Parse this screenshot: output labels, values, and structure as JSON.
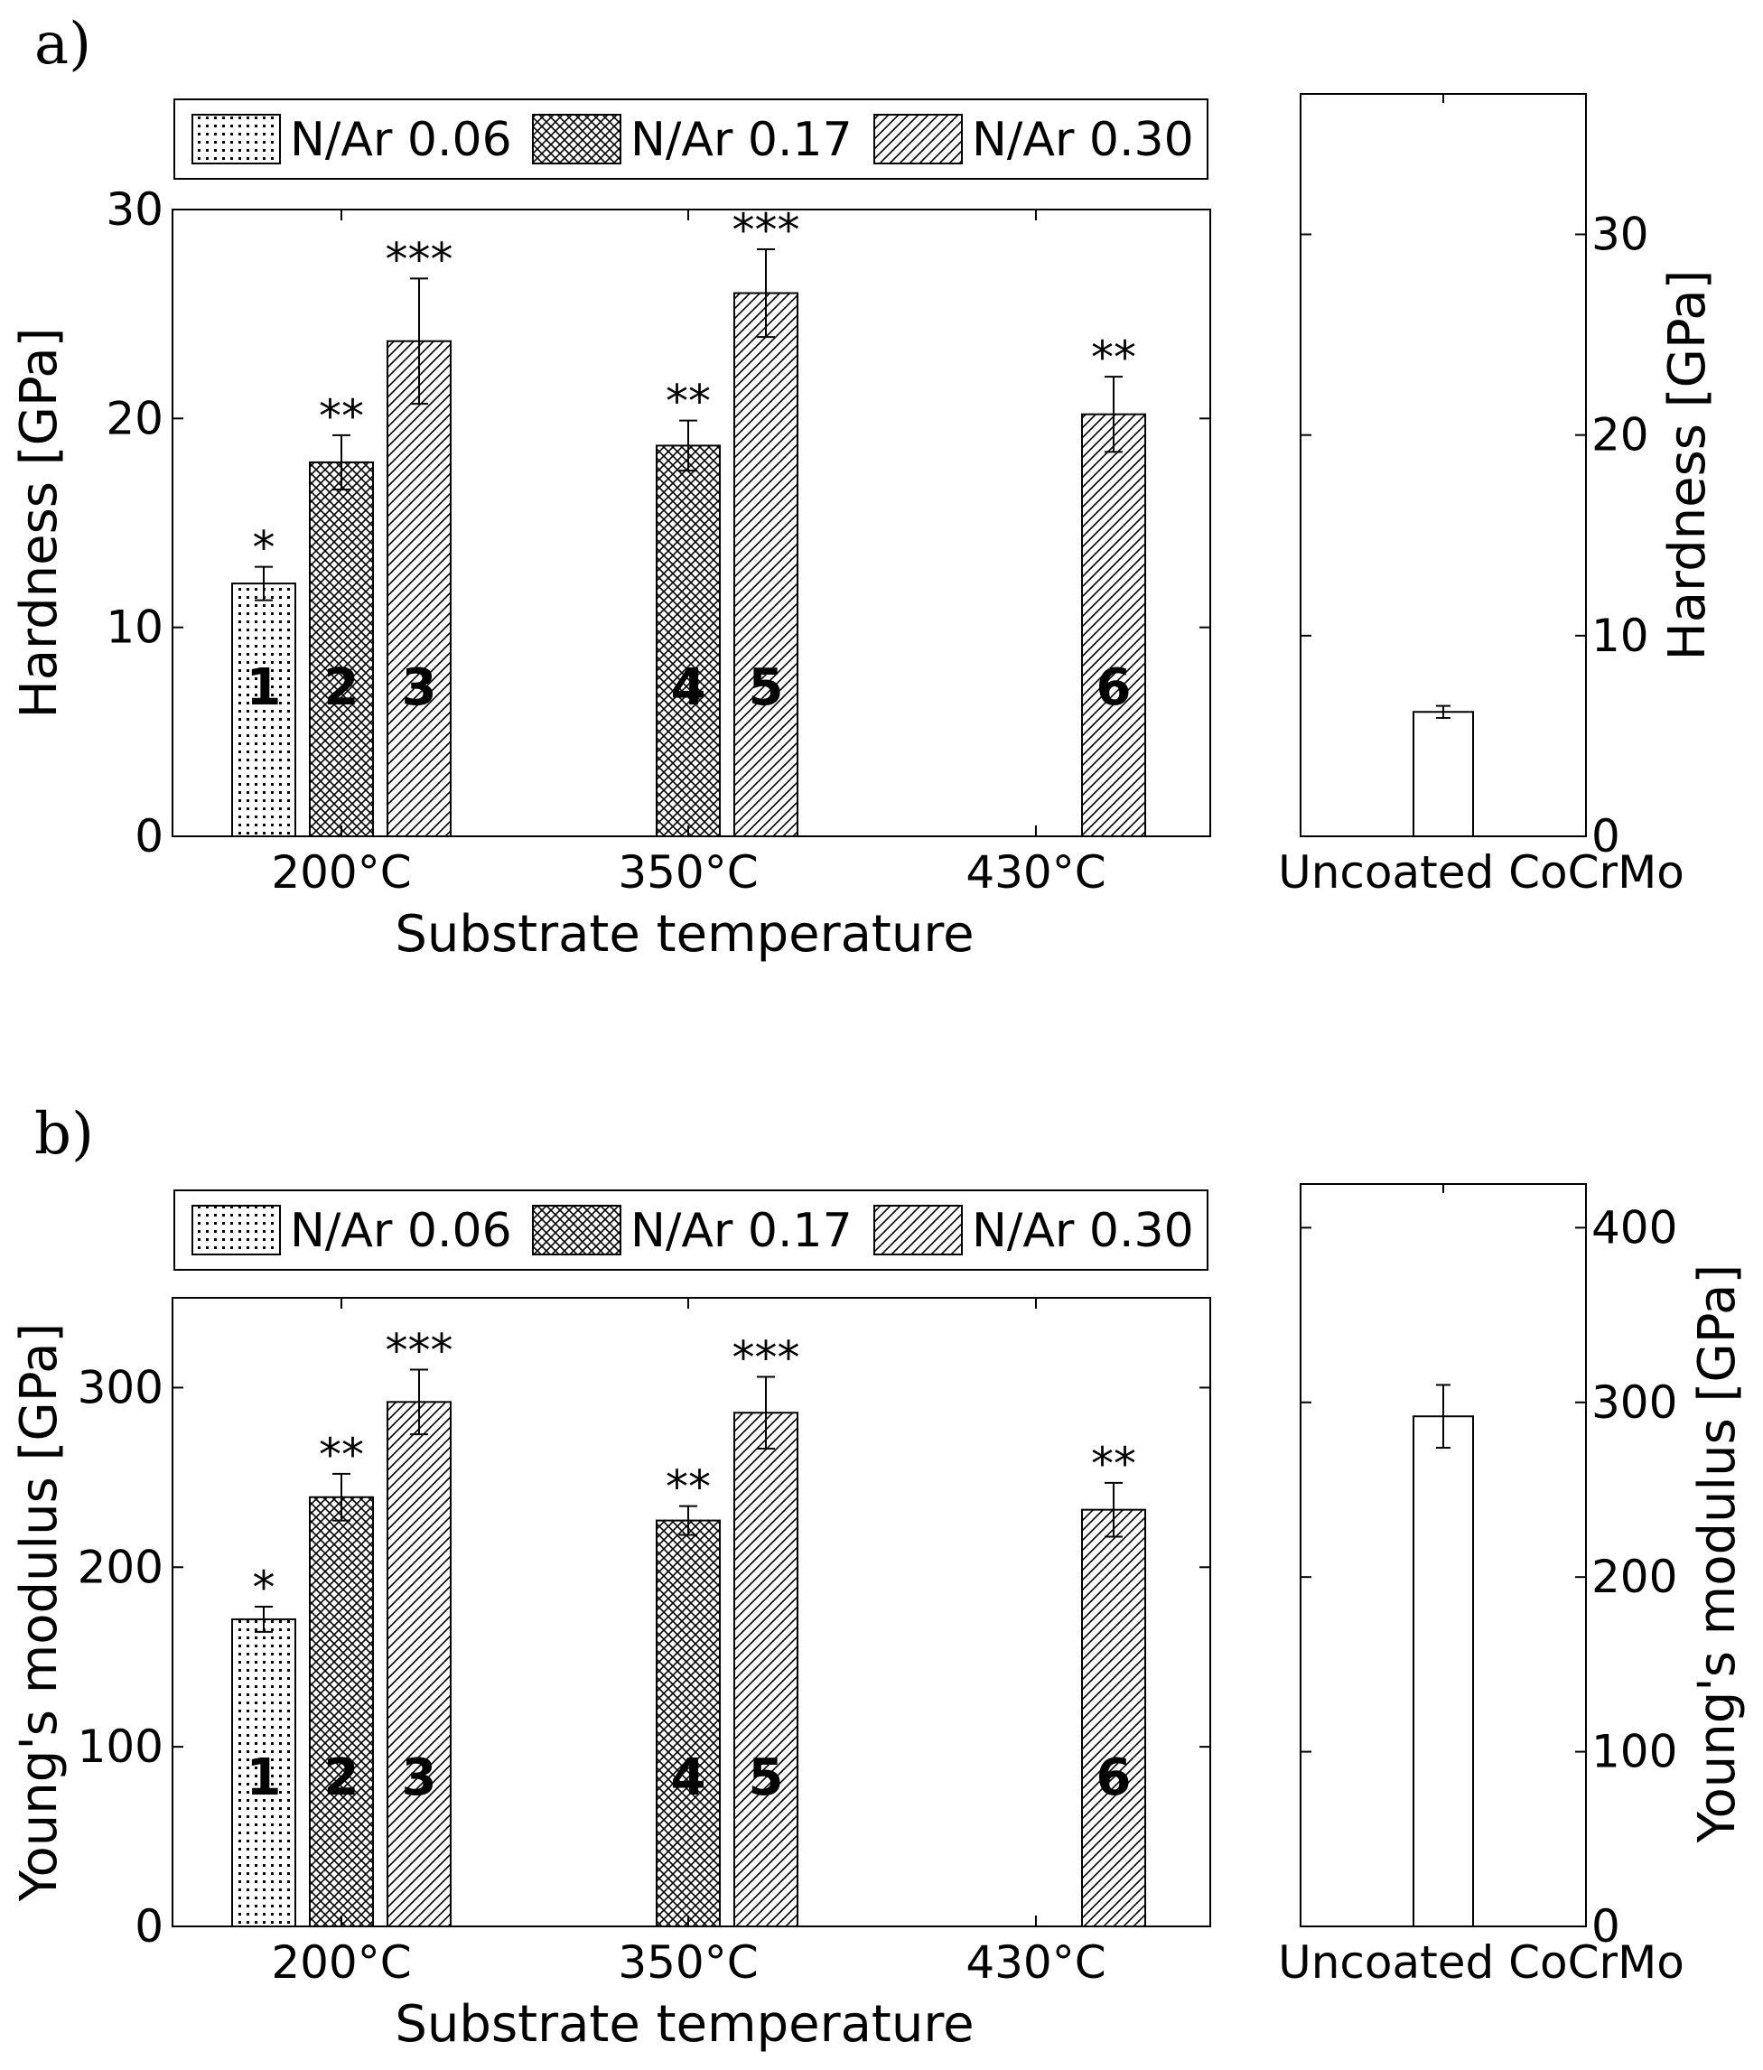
{
  "chart_data": [
    {
      "panel": "a)",
      "type": "bar",
      "xlabel": "Substrate temperature",
      "ylabel": "Hardness [GPa]",
      "ylim": [
        0,
        30
      ],
      "yticks": [
        "0",
        "10",
        "20",
        "30"
      ],
      "categories": [
        "200°C",
        "350°C",
        "430°C"
      ],
      "legend": [
        "N/Ar 0.06",
        "N/Ar 0.17",
        "N/Ar 0.30"
      ],
      "legend_position": "top",
      "bars": [
        {
          "id": "1",
          "category": "200°C",
          "series": "N/Ar 0.06",
          "value": 12.1,
          "error": 0.8,
          "significance": "*"
        },
        {
          "id": "2",
          "category": "200°C",
          "series": "N/Ar 0.17",
          "value": 17.9,
          "error": 1.3,
          "significance": "**"
        },
        {
          "id": "3",
          "category": "200°C",
          "series": "N/Ar 0.30",
          "value": 23.7,
          "error": 3.0,
          "significance": "***"
        },
        {
          "id": "4",
          "category": "350°C",
          "series": "N/Ar 0.17",
          "value": 18.7,
          "error": 1.2,
          "significance": "**"
        },
        {
          "id": "5",
          "category": "350°C",
          "series": "N/Ar 0.30",
          "value": 26.0,
          "error": 2.1,
          "significance": "***"
        },
        {
          "id": "6",
          "category": "430°C",
          "series": "N/Ar 0.30",
          "value": 20.2,
          "error": 1.8,
          "significance": "**"
        }
      ],
      "reference": {
        "label": "Uncoated CoCrMo",
        "value": 6.2,
        "error": 0.3,
        "ylabel": "Hardness [GPa]",
        "ylim": [
          0,
          37
        ],
        "yticks": [
          "0",
          "10",
          "20",
          "30"
        ]
      }
    },
    {
      "panel": "b)",
      "type": "bar",
      "xlabel": "Substrate temperature",
      "ylabel": "Young's modulus [GPa]",
      "ylim": [
        0,
        350
      ],
      "yticks": [
        "0",
        "100",
        "200",
        "300"
      ],
      "categories": [
        "200°C",
        "350°C",
        "430°C"
      ],
      "legend": [
        "N/Ar 0.06",
        "N/Ar 0.17",
        "N/Ar 0.30"
      ],
      "legend_position": "top",
      "bars": [
        {
          "id": "1",
          "category": "200°C",
          "series": "N/Ar 0.06",
          "value": 171,
          "error": 7,
          "significance": "*"
        },
        {
          "id": "2",
          "category": "200°C",
          "series": "N/Ar 0.17",
          "value": 239,
          "error": 13,
          "significance": "**"
        },
        {
          "id": "3",
          "category": "200°C",
          "series": "N/Ar 0.30",
          "value": 292,
          "error": 18,
          "significance": "***"
        },
        {
          "id": "4",
          "category": "350°C",
          "series": "N/Ar 0.17",
          "value": 226,
          "error": 8,
          "significance": "**"
        },
        {
          "id": "5",
          "category": "350°C",
          "series": "N/Ar 0.30",
          "value": 286,
          "error": 20,
          "significance": "***"
        },
        {
          "id": "6",
          "category": "430°C",
          "series": "N/Ar 0.30",
          "value": 232,
          "error": 15,
          "significance": "**"
        }
      ],
      "reference": {
        "label": "Uncoated CoCrMo",
        "value": 292,
        "error": 18,
        "ylabel": "Young's modulus [GPa]",
        "ylim": [
          0,
          425
        ],
        "yticks": [
          "0",
          "100",
          "200",
          "300",
          "400"
        ]
      }
    }
  ]
}
